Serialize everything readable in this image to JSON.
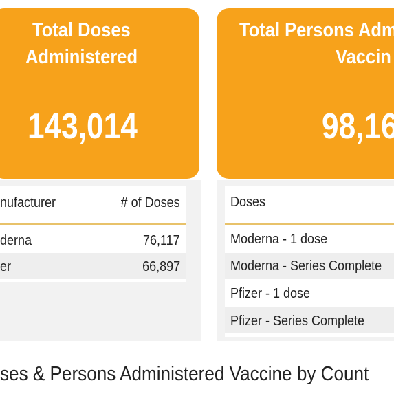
{
  "cards": [
    {
      "title_lines": [
        "Total Doses",
        "Administered"
      ],
      "value": "143,014"
    },
    {
      "title_lines": [
        "Total Persons Adm",
        "Vaccin"
      ],
      "value": "98,16"
    }
  ],
  "left_table": {
    "headers": [
      "nufacturer",
      "# of Doses"
    ],
    "rows": [
      [
        "derna",
        "76,117"
      ],
      [
        "er",
        "66,897"
      ]
    ]
  },
  "right_table": {
    "headers": [
      "Doses"
    ],
    "rows": [
      [
        "Moderna - 1 dose"
      ],
      [
        "Moderna - Series Complete"
      ],
      [
        "Pfizer - 1 dose"
      ],
      [
        "Pfizer - Series Complete"
      ]
    ]
  },
  "section_title": "ses & Persons Administered Vaccine by Count"
}
